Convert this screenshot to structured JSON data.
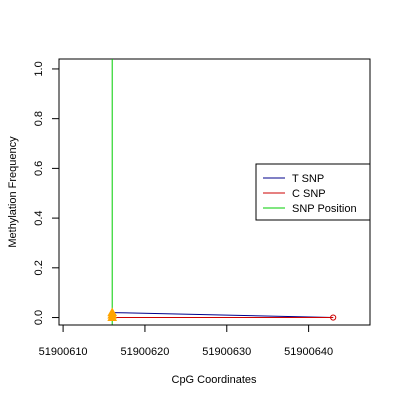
{
  "chart_data": {
    "type": "line",
    "title": "",
    "xlabel": "CpG Coordinates",
    "ylabel": "Methylation Frequency",
    "xlim": [
      51900609.5,
      51900647.5
    ],
    "ylim": [
      -0.03,
      1.04
    ],
    "x_ticks": [
      51900610,
      51900620,
      51900630,
      51900640
    ],
    "x_tick_labels": [
      "51900610",
      "51900620",
      "51900630",
      "51900640"
    ],
    "y_ticks": [
      0.0,
      0.2,
      0.4,
      0.6,
      0.8,
      1.0
    ],
    "y_tick_labels": [
      "0.0",
      "0.2",
      "0.4",
      "0.6",
      "0.8",
      "1.0"
    ],
    "grid": false,
    "legend_position": "right",
    "legend": [
      {
        "label": "T SNP",
        "color": "#00008B"
      },
      {
        "label": "C SNP",
        "color": "#CD0000"
      },
      {
        "label": "SNP Position",
        "color": "#00CD00"
      }
    ],
    "series": [
      {
        "key": "t",
        "color": "#00008B",
        "x": [
          51900616,
          51900643
        ],
        "y": [
          0.02,
          0.0
        ]
      },
      {
        "key": "c",
        "color": "#CD0000",
        "x": [
          51900616,
          51900643
        ],
        "y": [
          0.0,
          0.0
        ]
      }
    ],
    "snp_position": {
      "x": 51900616,
      "color": "#00CD00"
    },
    "markers": [
      {
        "x": 51900616,
        "y": 0.02,
        "shape": "triangle",
        "color": "#FFA500"
      },
      {
        "x": 51900616,
        "y": 0.01,
        "shape": "triangle",
        "color": "#FFA500"
      },
      {
        "x": 51900616,
        "y": 0.0,
        "shape": "triangle",
        "color": "#FFA500"
      },
      {
        "x": 51900643,
        "y": 0.0,
        "shape": "circle",
        "color": "#CD0000"
      }
    ]
  }
}
